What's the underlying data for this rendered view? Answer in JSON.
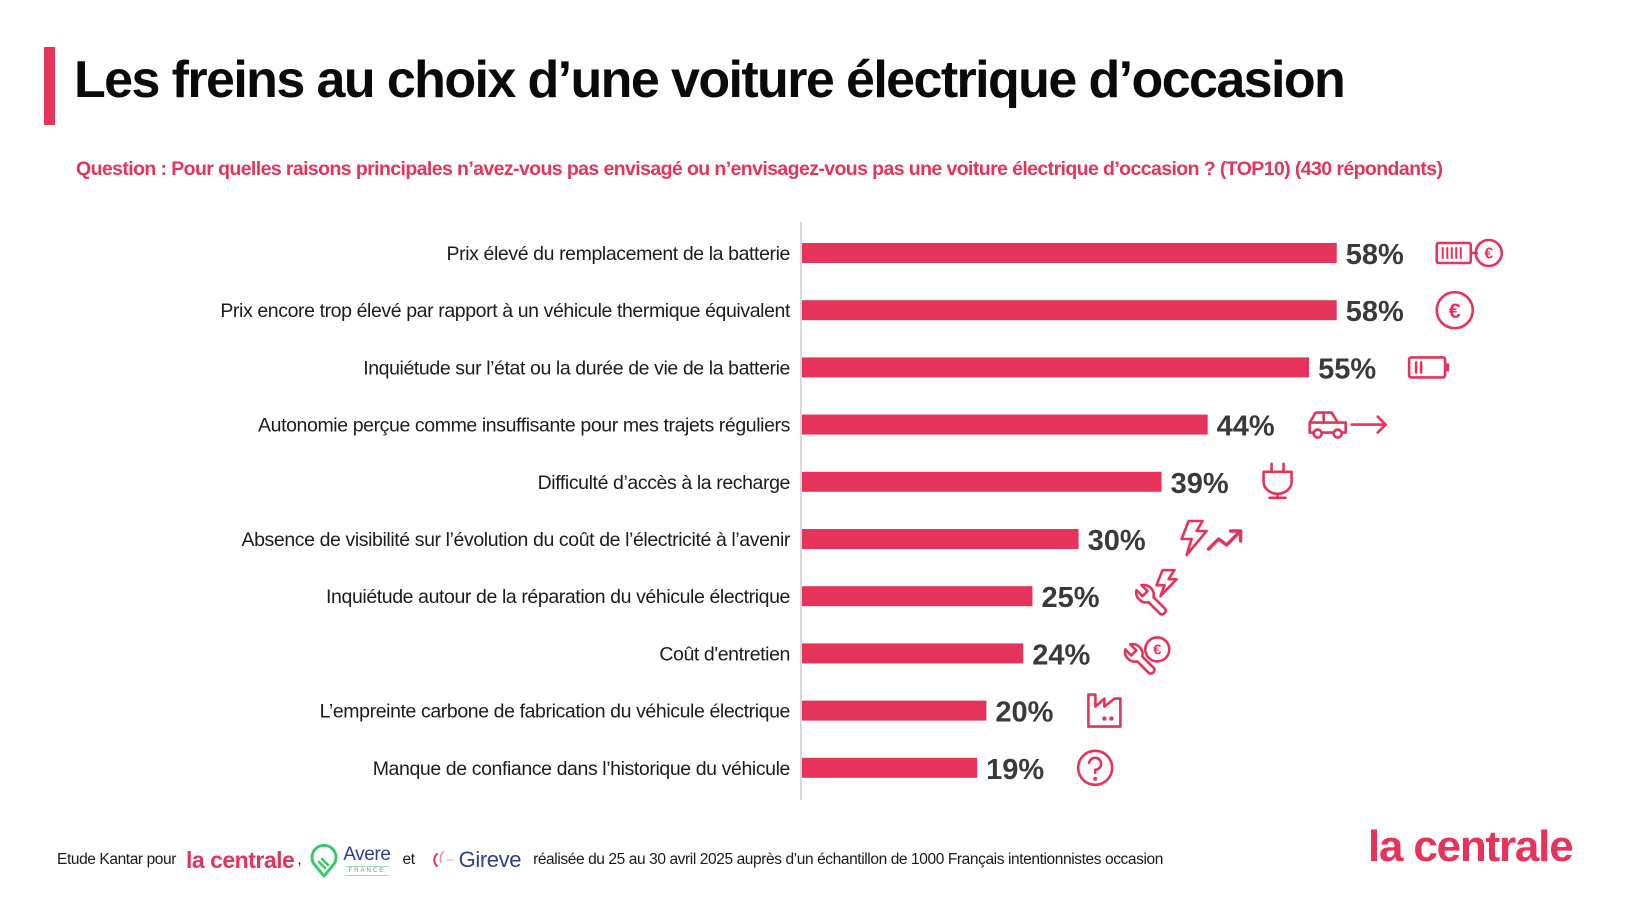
{
  "header": {
    "title": "Les freins au choix d’une voiture électrique d’occasion",
    "subtitle": "Question : Pour quelles raisons principales n’avez-vous pas envisagé ou n’envisagez-vous pas une voiture électrique d’occasion ? (TOP10) (430 répondants)"
  },
  "colors": {
    "accent": "#e5335a",
    "bar": "#e5335a",
    "value_text": "#3a3a3a",
    "axis": "#d8d8dc"
  },
  "chart_data": {
    "type": "bar",
    "orientation": "horizontal",
    "title": "Les freins au choix d’une voiture électrique d’occasion",
    "xlabel": "",
    "ylabel": "",
    "unit": "%",
    "xlim": [
      0,
      100
    ],
    "grid": false,
    "legend": "none",
    "categories": [
      "Prix élevé du remplacement de la batterie",
      "Prix encore trop élevé par rapport à un véhicule thermique équivalent",
      "Inquiétude sur l’état ou la durée de vie de la batterie",
      "Autonomie perçue comme insuffisante pour mes trajets réguliers",
      "Difficulté d’accès à la recharge",
      "Absence de visibilité sur l’évolution du coût de l’électricité à l’avenir",
      "Inquiétude autour de la réparation du véhicule électrique",
      "Coût d'entretien",
      "L’empreinte carbone de fabrication du véhicule électrique",
      "Manque de confiance dans l’historique du véhicule"
    ],
    "values": [
      58,
      58,
      55,
      44,
      39,
      30,
      25,
      24,
      20,
      19
    ],
    "value_labels": [
      "58%",
      "58%",
      "55%",
      "44%",
      "39%",
      "30%",
      "25%",
      "24%",
      "20%",
      "19%"
    ],
    "icons": [
      "battery-euro-icon",
      "euro-coin-icon",
      "battery-low-icon",
      "car-arrow-icon",
      "plug-icon",
      "lightning-trend-up-icon",
      "wrench-lightning-icon",
      "wrench-euro-icon",
      "factory-icon",
      "question-circle-icon"
    ]
  },
  "footer": {
    "prefix": "Etude Kantar pour",
    "partner1": "la centrale",
    "comma": ",",
    "partner2": "Avere",
    "partner2_sub": "FRANCE",
    "conj": "et",
    "partner3": "Gireve",
    "study_text": "réalisée du 25 au 30 avril 2025 auprès d’un échantillon de 1000 Français intentionnistes occasion"
  },
  "brand": {
    "logo_text": "la centrale"
  }
}
